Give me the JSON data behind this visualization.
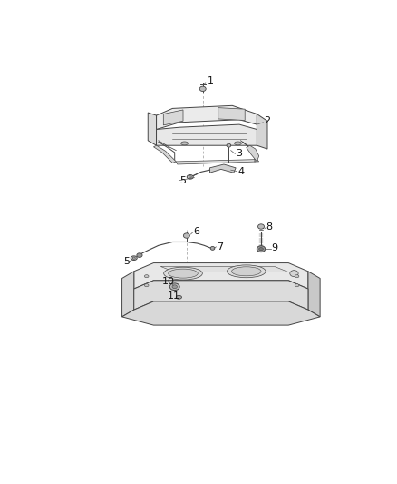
{
  "background_color": "#ffffff",
  "fig_width": 4.38,
  "fig_height": 5.33,
  "dpi": 100,
  "line_color": "#444444",
  "light_fill": "#f0f0f0",
  "mid_fill": "#e0e0e0",
  "dark_fill": "#c8c8c8",
  "dashed_color": "#999999",
  "label_color": "#111111",
  "label_fontsize": 7.5
}
